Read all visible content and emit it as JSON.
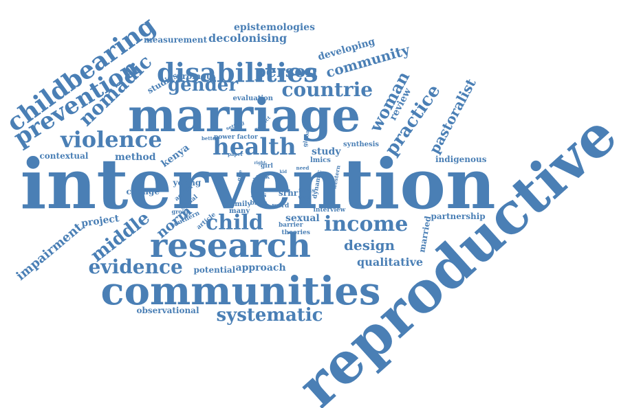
{
  "cloud": {
    "color": "#4a7fb5",
    "words": [
      {
        "text": "intervention"
      },
      {
        "text": "reproductive"
      },
      {
        "text": "marriage"
      },
      {
        "text": "communities"
      },
      {
        "text": "research"
      },
      {
        "text": "health"
      },
      {
        "text": "disabilities"
      },
      {
        "text": "childbearing"
      },
      {
        "text": "prevention"
      },
      {
        "text": "violence"
      },
      {
        "text": "child"
      },
      {
        "text": "income"
      },
      {
        "text": "systematic"
      },
      {
        "text": "countrie"
      },
      {
        "text": "gender"
      },
      {
        "text": "person"
      },
      {
        "text": "nomadic"
      },
      {
        "text": "evidence"
      },
      {
        "text": "practice"
      },
      {
        "text": "middle"
      },
      {
        "text": "design"
      },
      {
        "text": "community"
      },
      {
        "text": "woman"
      },
      {
        "text": "pastoralist"
      },
      {
        "text": "qualitative"
      },
      {
        "text": "impairment"
      },
      {
        "text": "norm"
      },
      {
        "text": "decolonising"
      },
      {
        "text": "epistemologies"
      },
      {
        "text": "developing"
      },
      {
        "text": "measurement"
      },
      {
        "text": "review"
      },
      {
        "text": "study"
      },
      {
        "text": "method"
      },
      {
        "text": "kenya"
      },
      {
        "text": "project"
      },
      {
        "text": "approach"
      },
      {
        "text": "potential"
      },
      {
        "text": "observational"
      },
      {
        "text": "sexual"
      },
      {
        "text": "married"
      },
      {
        "text": "partnership"
      },
      {
        "text": "indigenous"
      },
      {
        "text": "young"
      },
      {
        "text": "change"
      },
      {
        "text": "contextual"
      },
      {
        "text": "promote"
      },
      {
        "text": "studies"
      },
      {
        "text": "evaluation"
      },
      {
        "text": "power factor"
      },
      {
        "text": "synthesis"
      },
      {
        "text": "lmics"
      },
      {
        "text": "srhr"
      },
      {
        "text": "interview"
      },
      {
        "text": "barrier"
      },
      {
        "text": "theories"
      },
      {
        "text": "family"
      },
      {
        "text": "many"
      },
      {
        "text": "action"
      },
      {
        "text": "social"
      },
      {
        "text": "group"
      },
      {
        "text": "southern"
      },
      {
        "text": "article"
      },
      {
        "text": "bias"
      },
      {
        "text": "birth"
      },
      {
        "text": "girl"
      },
      {
        "text": "risk"
      },
      {
        "text": "word"
      },
      {
        "text": "focus"
      },
      {
        "text": "dynamic"
      },
      {
        "text": "western"
      },
      {
        "text": "global"
      },
      {
        "text": "way"
      },
      {
        "text": "need"
      },
      {
        "text": "setting"
      },
      {
        "text": "impact"
      },
      {
        "text": "better"
      },
      {
        "text": "paper"
      },
      {
        "text": "give"
      },
      {
        "text": "right"
      },
      {
        "text": "get"
      },
      {
        "text": "kid"
      }
    ]
  }
}
